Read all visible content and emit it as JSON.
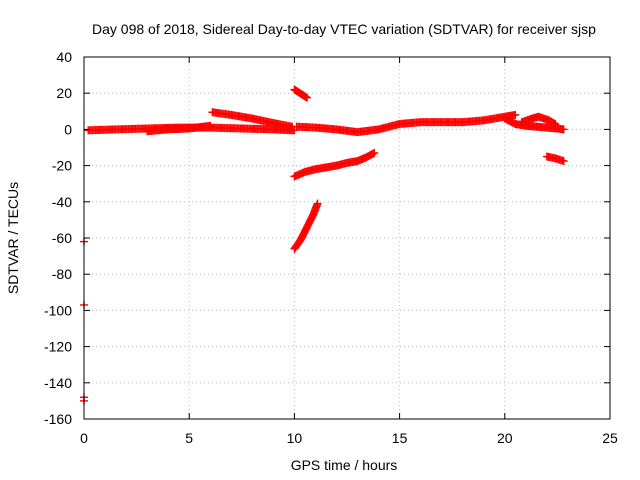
{
  "chart_data": {
    "type": "scatter",
    "title": "Day 098 of 2018, Sidereal Day-to-day VTEC variation (SDTVAR) for receiver sjsp",
    "xlabel": "GPS time / hours",
    "ylabel": "SDTVAR / TECUs",
    "xlim": [
      0,
      25
    ],
    "ylim": [
      -160,
      40
    ],
    "xticks": [
      0,
      5,
      10,
      15,
      20,
      25
    ],
    "yticks": [
      -160,
      -140,
      -120,
      -100,
      -80,
      -60,
      -40,
      -20,
      0,
      20,
      40
    ],
    "grid": true,
    "legend": "none",
    "marker": "plus",
    "color": "#ff0000",
    "segments": [
      [
        [
          0.2,
          -0.5
        ],
        [
          1.5,
          0
        ],
        [
          3,
          0.5
        ],
        [
          4.5,
          1
        ],
        [
          6,
          1
        ],
        [
          7.5,
          0.5
        ],
        [
          9,
          0
        ],
        [
          10,
          -0.5
        ]
      ],
      [
        [
          3,
          -1
        ],
        [
          4,
          0
        ],
        [
          5,
          0.5
        ],
        [
          6,
          2
        ]
      ],
      [
        [
          6.1,
          9.5
        ],
        [
          7,
          8
        ],
        [
          8,
          6
        ],
        [
          9,
          3.5
        ],
        [
          9.9,
          1.5
        ]
      ],
      [
        [
          10,
          22
        ],
        [
          10.2,
          20.5
        ],
        [
          10.4,
          19
        ],
        [
          10.6,
          17.5
        ]
      ],
      [
        [
          10.1,
          1.5
        ],
        [
          11,
          1
        ],
        [
          12,
          0
        ],
        [
          13,
          -1.5
        ],
        [
          14,
          0
        ],
        [
          15,
          3
        ],
        [
          16,
          4
        ],
        [
          17,
          4
        ],
        [
          18,
          4
        ],
        [
          19,
          5
        ],
        [
          20,
          7
        ],
        [
          20.5,
          8
        ]
      ],
      [
        [
          10,
          -26
        ],
        [
          10.5,
          -23.5
        ],
        [
          11,
          -22
        ],
        [
          11.5,
          -21
        ],
        [
          12,
          -20
        ],
        [
          12.5,
          -18.5
        ],
        [
          13,
          -17.5
        ],
        [
          13.4,
          -15.5
        ],
        [
          13.8,
          -13
        ]
      ],
      [
        [
          10,
          -66
        ],
        [
          10.3,
          -61
        ],
        [
          10.6,
          -54
        ],
        [
          10.9,
          -47
        ],
        [
          11.1,
          -41
        ]
      ],
      [
        [
          20,
          6
        ],
        [
          20.5,
          3
        ],
        [
          21,
          2
        ],
        [
          21.5,
          1.5
        ],
        [
          22,
          1
        ],
        [
          22.5,
          0.5
        ],
        [
          22.8,
          0
        ]
      ],
      [
        [
          20.8,
          4
        ],
        [
          21.3,
          6
        ],
        [
          21.6,
          7
        ],
        [
          22.1,
          5
        ],
        [
          22.4,
          3
        ]
      ],
      [
        [
          22,
          -15
        ],
        [
          22.4,
          -16
        ],
        [
          22.8,
          -17.5
        ]
      ]
    ],
    "points": [
      [
        0,
        -62
      ],
      [
        0,
        -97
      ],
      [
        0,
        -148
      ],
      [
        0,
        -150
      ]
    ]
  }
}
